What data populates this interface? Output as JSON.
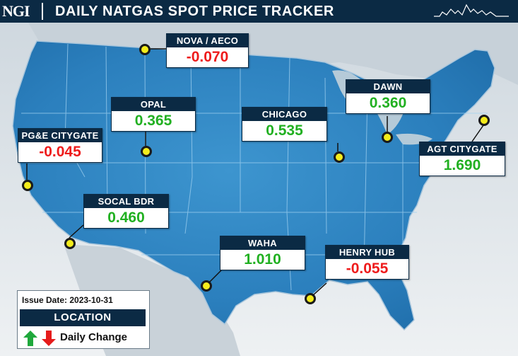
{
  "header": {
    "logo": "NGI",
    "title": "DAILY NATGAS SPOT PRICE TRACKER",
    "sparkline_icon": "sparkline-icon"
  },
  "colors": {
    "header_bg": "#0b2a44",
    "map_blue": "#2b84c2",
    "up": "#21b021",
    "down": "#ee1c1c",
    "marker": "#f4ec1c"
  },
  "hubs": [
    {
      "id": "nova-aeco",
      "name": "NOVA / AECO",
      "value": "-0.070",
      "direction": "down"
    },
    {
      "id": "opal",
      "name": "OPAL",
      "value": "0.365",
      "direction": "up"
    },
    {
      "id": "dawn",
      "name": "DAWN",
      "value": "0.360",
      "direction": "up"
    },
    {
      "id": "chicago",
      "name": "CHICAGO",
      "value": "0.535",
      "direction": "up"
    },
    {
      "id": "pge-citygate",
      "name": "PG&E CITYGATE",
      "value": "-0.045",
      "direction": "down"
    },
    {
      "id": "agt-citygate",
      "name": "AGT CITYGATE",
      "value": "1.690",
      "direction": "up"
    },
    {
      "id": "socal-bdr",
      "name": "SOCAL BDR",
      "value": "0.460",
      "direction": "up"
    },
    {
      "id": "waha",
      "name": "WAHA",
      "value": "1.010",
      "direction": "up"
    },
    {
      "id": "henry-hub",
      "name": "HENRY HUB",
      "value": "-0.055",
      "direction": "down"
    }
  ],
  "legend": {
    "issue_date": "Issue Date: 2023-10-31",
    "location_label": "LOCATION",
    "daily_change_label": "Daily Change",
    "up_icon": "green-up-arrow-icon",
    "down_icon": "red-down-arrow-icon"
  }
}
